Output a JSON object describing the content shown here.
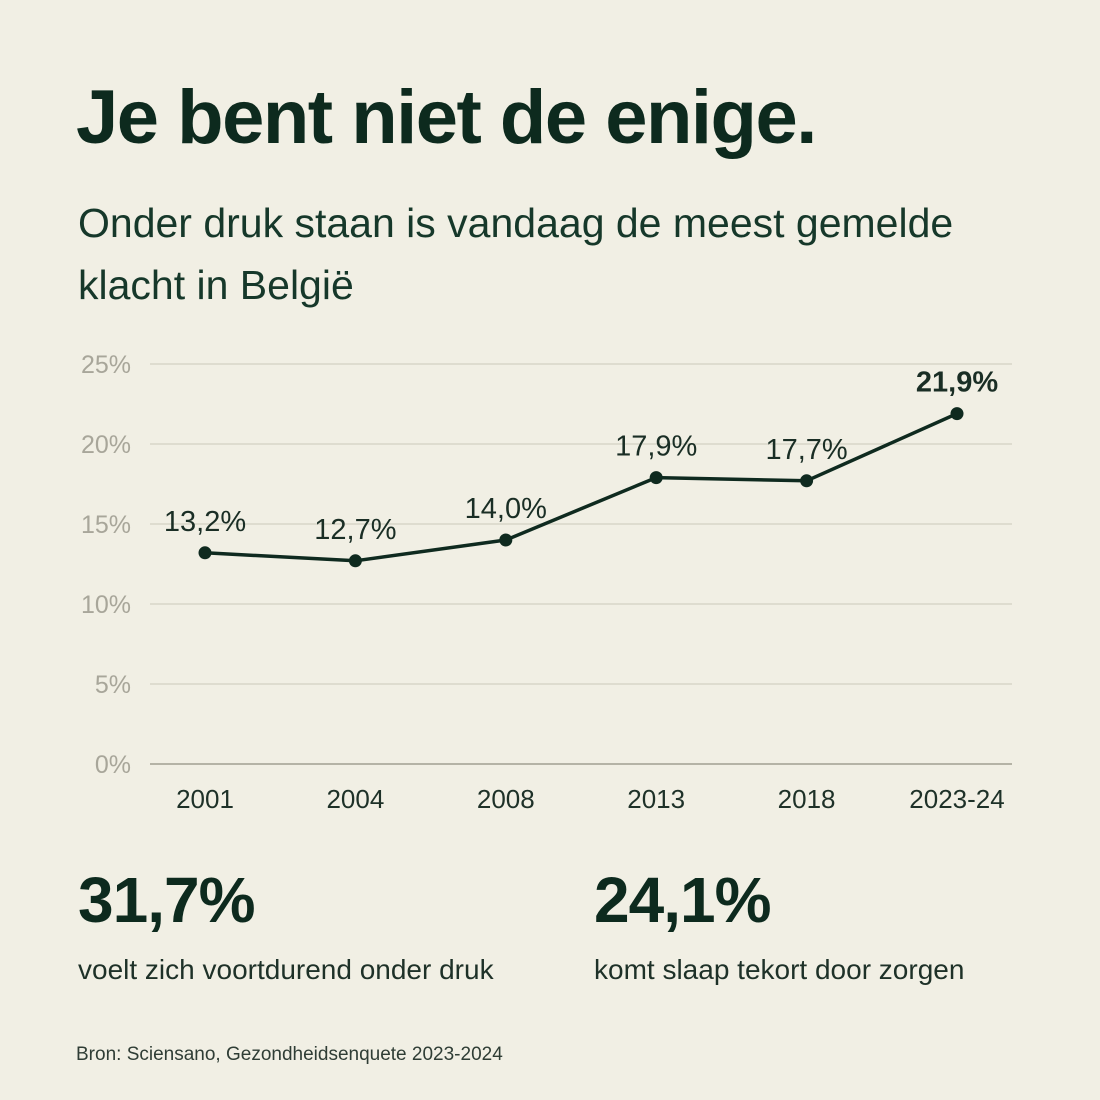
{
  "title": "Je bent niet de enige.",
  "subtitle": "Onder druk staan is vandaag de meest gemelde klacht in België",
  "chart_data": {
    "type": "line",
    "categories": [
      "2001",
      "2004",
      "2008",
      "2013",
      "2018",
      "2023-24"
    ],
    "values": [
      13.2,
      12.7,
      14.0,
      17.9,
      17.7,
      21.9
    ],
    "data_labels": [
      "13,2%",
      "12,7%",
      "14,0%",
      "17,9%",
      "17,7%",
      "21,9%"
    ],
    "yticks": [
      {
        "value": 0,
        "label": "0%"
      },
      {
        "value": 5,
        "label": "5%"
      },
      {
        "value": 10,
        "label": "10%"
      },
      {
        "value": 15,
        "label": "15%"
      },
      {
        "value": 20,
        "label": "20%"
      },
      {
        "value": 25,
        "label": "25%"
      }
    ],
    "ylim": [
      0,
      25
    ],
    "grid": true,
    "line_color": "#0f2a1f"
  },
  "stats": [
    {
      "value": "31,7%",
      "label": "voelt zich voortdurend onder druk"
    },
    {
      "value": "24,1%",
      "label": "komt slaap tekort door zorgen"
    }
  ],
  "source": "Bron: Sciensano, Gezondheidsenquete 2023-2024"
}
